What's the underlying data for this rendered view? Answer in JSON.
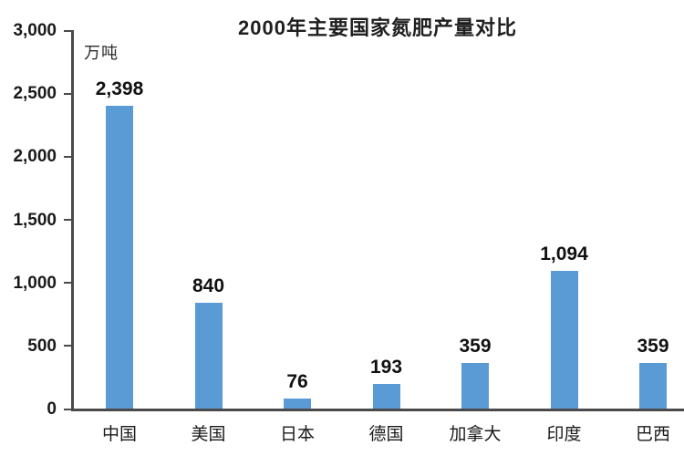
{
  "chart_data": {
    "type": "bar",
    "title": "2000年主要国家氮肥产量对比",
    "ylabel": "万吨",
    "xlabel": "",
    "categories": [
      "中国",
      "美国",
      "日本",
      "德国",
      "加拿大",
      "印度",
      "巴西"
    ],
    "values": [
      2398,
      840,
      76,
      193,
      359,
      1094,
      359
    ],
    "value_labels": [
      "2,398",
      "840",
      "76",
      "193",
      "359",
      "1,094",
      "359"
    ],
    "ylim": [
      0,
      3000
    ],
    "yticks": [
      0,
      500,
      1000,
      1500,
      2000,
      2500,
      3000
    ],
    "ytick_labels": [
      "0",
      "500",
      "1,000",
      "1,500",
      "2,000",
      "2,500",
      "3,000"
    ],
    "grid": false,
    "legend_position": "none",
    "colors": {
      "bar": "#5B9BD5",
      "axis": "#4a4a4a",
      "text": "#1a1a1a",
      "background": "#ffffff"
    }
  }
}
